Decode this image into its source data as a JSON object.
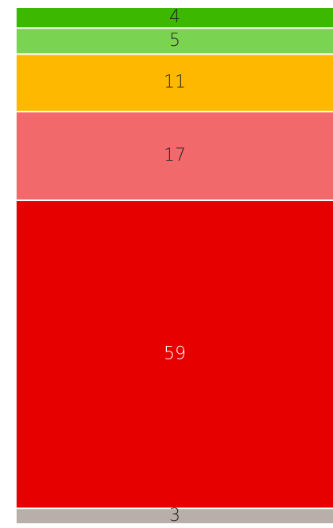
{
  "chart_data": {
    "type": "bar",
    "stacked": true,
    "values": [
      4,
      5,
      11,
      17,
      59,
      3
    ],
    "colors": [
      "#3cb800",
      "#7ad452",
      "#ffb800",
      "#f2696b",
      "#e60000",
      "#b8aeaa"
    ],
    "label_colors": [
      "#222222",
      "#222222",
      "#222222",
      "#222222",
      "#ffffff",
      "#222222"
    ]
  }
}
